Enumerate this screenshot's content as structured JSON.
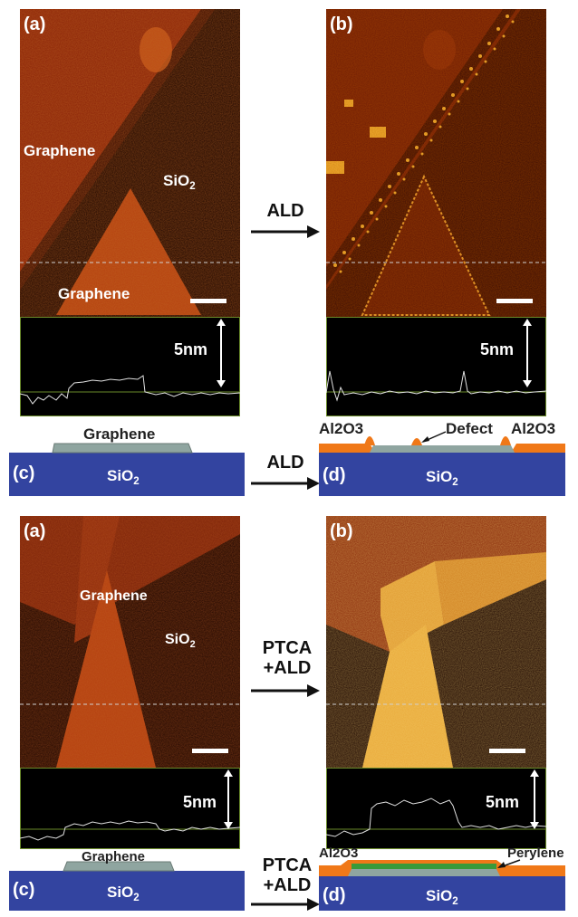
{
  "top": {
    "a": {
      "panel_label": "(a)",
      "labels": {
        "graphene_upper": "Graphene",
        "sio2": "SiO",
        "sio2_sub": "2",
        "graphene_lower": "Graphene"
      },
      "profile_scale": "5nm"
    },
    "b": {
      "panel_label": "(b)",
      "profile_scale": "5nm"
    },
    "arrow": {
      "label": "ALD"
    },
    "c": {
      "panel_label": "(c)",
      "graphene": "Graphene",
      "sio2": "SiO",
      "sio2_sub": "2"
    },
    "d": {
      "panel_label": "(d)",
      "al2o3_left": "Al2O3",
      "defect": "Defect",
      "al2o3_right": "Al2O3",
      "sio2": "SiO",
      "sio2_sub": "2"
    },
    "arrow_cd": {
      "label": "ALD"
    }
  },
  "bottom": {
    "a": {
      "panel_label": "(a)",
      "labels": {
        "graphene": "Graphene",
        "sio2": "SiO",
        "sio2_sub": "2"
      },
      "profile_scale": "5nm"
    },
    "b": {
      "panel_label": "(b)",
      "profile_scale": "5nm"
    },
    "arrow": {
      "line1": "PTCA",
      "line2": "+ALD"
    },
    "c": {
      "panel_label": "(c)",
      "graphene": "Graphene",
      "sio2": "SiO",
      "sio2_sub": "2"
    },
    "d": {
      "panel_label": "(d)",
      "al2o3": "Al2O3",
      "perylene": "Perylene",
      "sio2": "SiO",
      "sio2_sub": "2"
    },
    "arrow_cd": {
      "line1": "PTCA",
      "line2": "+ALD"
    }
  },
  "colors": {
    "afm_dark": "#1a0400",
    "afm_mid": "#7a1a04",
    "graphene_orange": "#b53a10",
    "ald_yellow": "#f0c040",
    "sio2_blue": "#3344a0",
    "graphene_gray": "#8fa5a0",
    "al2o3_orange": "#f07818",
    "perylene_green": "#3a9a3a"
  }
}
